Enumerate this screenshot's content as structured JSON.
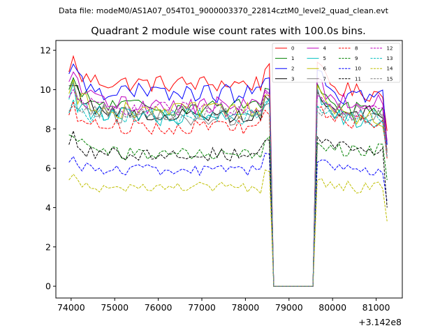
{
  "header": {
    "suptitle": "Data file: modeM0/AS1A07_054T01_9000003370_22814cztM0_level2_quad_clean.evt",
    "title": "Quadrant 2 module wise count rates with 100.0s bins.",
    "x_offset_text": "+3.142e8"
  },
  "chart_data": {
    "type": "line",
    "title": "Quadrant 2 module wise count rates with 100.0s bins.",
    "xlabel": "",
    "ylabel": "",
    "x_offset": 314200000,
    "xlim": [
      73650,
      81600
    ],
    "ylim": [
      -0.6,
      12.5
    ],
    "x_ticks": [
      74000,
      75000,
      76000,
      77000,
      78000,
      79000,
      80000,
      81000
    ],
    "y_ticks": [
      0,
      2,
      4,
      6,
      8,
      10,
      12
    ],
    "x_tick_labels": [
      "74000",
      "75000",
      "76000",
      "77000",
      "78000",
      "79000",
      "80000",
      "81000"
    ],
    "y_tick_labels": [
      "0",
      "2",
      "4",
      "6",
      "8",
      "10",
      "12"
    ],
    "grid": false,
    "legend": {
      "placement": "top-right",
      "columns": 4
    },
    "x_start": 73950,
    "bin": 100,
    "gap": [
      78650,
      79550
    ],
    "end_x": 81250,
    "series": [
      {
        "name": "0",
        "color": "#ff0000",
        "dash": "solid",
        "pre": 10.3,
        "first": 10.9,
        "peak": 11.7,
        "post": 9.8,
        "end": 7.9,
        "amp": 0.45
      },
      {
        "name": "1",
        "color": "#008000",
        "dash": "solid",
        "pre": 9.1,
        "first": 10.0,
        "peak": 10.6,
        "post": 9.0,
        "end": 7.2,
        "amp": 0.45
      },
      {
        "name": "2",
        "color": "#0000ff",
        "dash": "solid",
        "pre": 9.8,
        "first": 10.8,
        "peak": 11.3,
        "post": 9.6,
        "end": 7.2,
        "amp": 0.5
      },
      {
        "name": "3",
        "color": "#000000",
        "dash": "solid",
        "pre": 8.7,
        "first": 10.2,
        "peak": 10.2,
        "post": 8.8,
        "end": 6.9,
        "amp": 0.4
      },
      {
        "name": "4",
        "color": "#bf00bf",
        "dash": "solid",
        "pre": 9.2,
        "first": 10.4,
        "peak": 10.9,
        "post": 9.3,
        "end": 7.4,
        "amp": 0.45
      },
      {
        "name": "5",
        "color": "#00bfbf",
        "dash": "solid",
        "pre": 8.6,
        "first": 9.5,
        "peak": 10.4,
        "post": 8.2,
        "end": 6.8,
        "amp": 0.45
      },
      {
        "name": "6",
        "color": "#bfbf00",
        "dash": "solid",
        "pre": 8.9,
        "first": 9.8,
        "peak": 10.5,
        "post": 8.5,
        "end": 6.9,
        "amp": 0.45
      },
      {
        "name": "7",
        "color": "#808080",
        "dash": "solid",
        "pre": 8.6,
        "first": 10.2,
        "peak": 10.3,
        "post": 8.7,
        "end": 6.8,
        "amp": 0.45
      },
      {
        "name": "8",
        "color": "#ff0000",
        "dash": "dashed",
        "pre": 8.1,
        "first": 8.7,
        "peak": 9.4,
        "post": 8.3,
        "end": 6.5,
        "amp": 0.4
      },
      {
        "name": "9",
        "color": "#008000",
        "dash": "dashed",
        "pre": 6.7,
        "first": 7.7,
        "peak": 7.6,
        "post": 6.9,
        "end": 5.4,
        "amp": 0.35
      },
      {
        "name": "10",
        "color": "#0000ff",
        "dash": "dashed",
        "pre": 5.9,
        "first": 6.3,
        "peak": 6.6,
        "post": 5.9,
        "end": 4.3,
        "amp": 0.3
      },
      {
        "name": "11",
        "color": "#000000",
        "dash": "dashed",
        "pre": 6.7,
        "first": 7.2,
        "peak": 7.9,
        "post": 7.0,
        "end": 4.0,
        "amp": 0.35
      },
      {
        "name": "12",
        "color": "#bf00bf",
        "dash": "dashed",
        "pre": 9.0,
        "first": 9.6,
        "peak": 10.0,
        "post": 8.8,
        "end": 6.6,
        "amp": 0.4
      },
      {
        "name": "13",
        "color": "#00bfbf",
        "dash": "dashed",
        "pre": 8.6,
        "first": 8.8,
        "peak": 9.5,
        "post": 8.6,
        "end": 6.6,
        "amp": 0.4
      },
      {
        "name": "14",
        "color": "#bfbf00",
        "dash": "dashed",
        "pre": 5.0,
        "first": 5.4,
        "peak": 5.7,
        "post": 5.0,
        "end": 3.3,
        "amp": 0.3
      },
      {
        "name": "15",
        "color": "#808080",
        "dash": "dashed",
        "pre": 8.8,
        "first": 8.9,
        "peak": 9.2,
        "post": 8.6,
        "end": 6.5,
        "amp": 0.35
      }
    ]
  }
}
